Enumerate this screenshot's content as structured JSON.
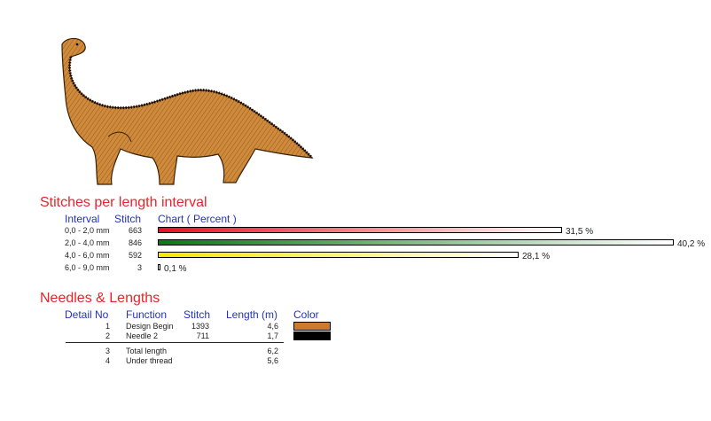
{
  "stitches_section": {
    "title": "Stitches per length interval",
    "headers": {
      "interval": "Interval",
      "stitch": "Stitch",
      "chart": "Chart ( Percent )"
    },
    "rows": [
      {
        "interval": "0,0 - 2,0 mm",
        "stitch": "663",
        "percent_label": "31,5 %",
        "percent": 31.5,
        "color_start": "#e8101c"
      },
      {
        "interval": "2,0 - 4,0 mm",
        "stitch": "846",
        "percent_label": "40,2 %",
        "percent": 40.2,
        "color_start": "#0a7a12"
      },
      {
        "interval": "4,0 - 6,0 mm",
        "stitch": "592",
        "percent_label": "28,1 %",
        "percent": 28.1,
        "color_start": "#f2ea00"
      },
      {
        "interval": "6,0 - 9,0 mm",
        "stitch": "3",
        "percent_label": "0,1 %",
        "percent": 0.1,
        "color_start": "#ffffff"
      }
    ]
  },
  "needles_section": {
    "title": "Needles & Lengths",
    "headers": {
      "detail": "Detail No",
      "function": "Function",
      "stitch": "Stitch",
      "length": "Length (m)",
      "color": "Color"
    },
    "rows": [
      {
        "no": "1",
        "function": "Design Begin",
        "stitch": "1393",
        "length": "4,6",
        "color": "#cc7a2e"
      },
      {
        "no": "2",
        "function": "Needle 2",
        "stitch": "711",
        "length": "1,7",
        "color": "#000000"
      }
    ],
    "totals": [
      {
        "no": "3",
        "function": "Total length",
        "length": "6,2"
      },
      {
        "no": "4",
        "function": "Under thread",
        "length": "5,6"
      }
    ]
  },
  "colors": {
    "title_red": "#e8242b",
    "header_blue": "#2233bb",
    "dino_orange": "#d08a3c"
  }
}
